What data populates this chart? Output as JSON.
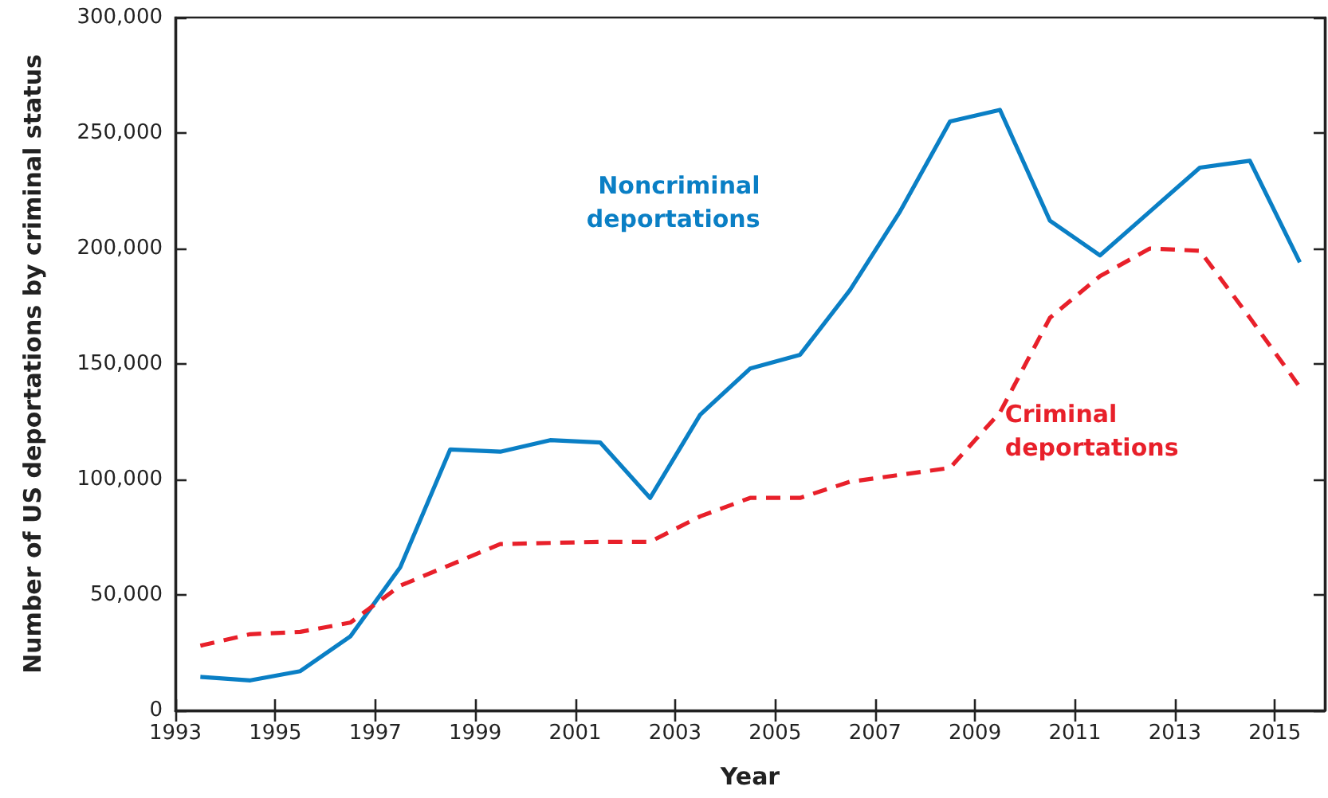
{
  "chart_data": {
    "type": "line",
    "xlabel": "Year",
    "ylabel": "Number of US deportations by criminal status",
    "x": [
      1993.5,
      1994.5,
      1995.5,
      1996.5,
      1997.5,
      1998.5,
      1999.5,
      2000.5,
      2001.5,
      2002.5,
      2003.5,
      2004.5,
      2005.5,
      2006.5,
      2007.5,
      2008.5,
      2009.5,
      2010.5,
      2011.5,
      2012.5,
      2013.5,
      2014.5,
      2015.5
    ],
    "series": [
      {
        "name": "Noncriminal deportations",
        "color": "#0a7fc5",
        "line_style": "solid",
        "values": [
          14500,
          13000,
          17000,
          32000,
          62000,
          113000,
          112000,
          117000,
          116000,
          92000,
          128000,
          148000,
          154000,
          182000,
          216000,
          255000,
          260000,
          212000,
          197000,
          216000,
          235000,
          238000,
          194000
        ]
      },
      {
        "name": "Criminal deportations",
        "color": "#e8202a",
        "line_style": "dashed",
        "values": [
          28000,
          33000,
          34000,
          38000,
          54000,
          63000,
          72000,
          72500,
          73000,
          73000,
          84000,
          92000,
          92000,
          99000,
          102000,
          105000,
          129000,
          170000,
          188000,
          200000,
          199000,
          170000,
          140000
        ]
      }
    ],
    "xlim": [
      1993,
      2016
    ],
    "xticks": [
      1993,
      1995,
      1997,
      1999,
      2001,
      2003,
      2005,
      2007,
      2009,
      2011,
      2013,
      2015
    ],
    "ylim": [
      0,
      300000
    ],
    "yticks": [
      0,
      {
        "value": 50000,
        "label": "50,000"
      },
      {
        "value": 100000,
        "label": "100,000"
      },
      {
        "value": 150000,
        "label": "150,000"
      },
      {
        "value": 200000,
        "label": "200,000"
      },
      {
        "value": 250000,
        "label": "250,000"
      },
      {
        "value": 300000,
        "label": "300,000"
      }
    ],
    "grid": false,
    "legend": false,
    "marker": "none"
  }
}
